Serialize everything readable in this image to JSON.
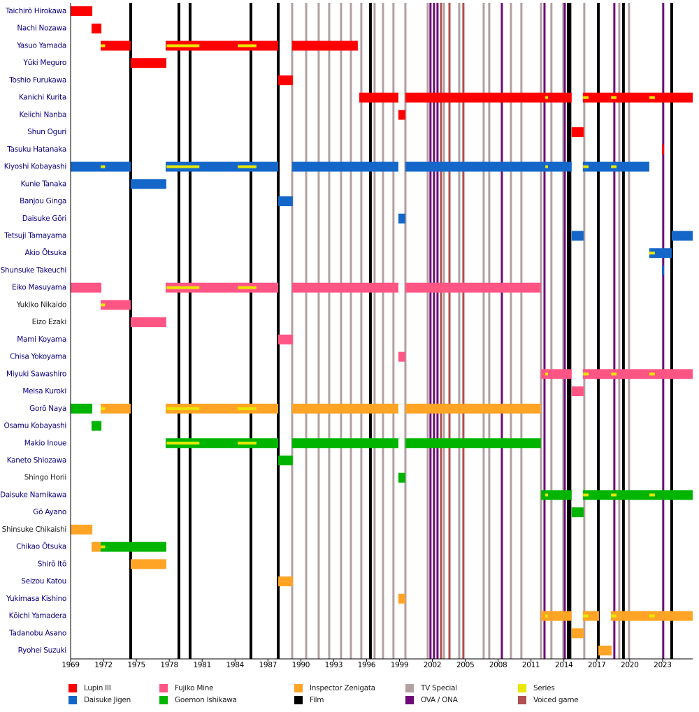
{
  "chart_data": {
    "type": "timeline",
    "xlim": [
      1969,
      2025.75
    ],
    "xticks": [
      1969,
      1972,
      1975,
      1978,
      1981,
      1984,
      1987,
      1990,
      1993,
      1996,
      1999,
      2002,
      2005,
      2008,
      2011,
      2014,
      2017,
      2020,
      2023
    ],
    "roles": [
      {
        "name": "Lupin III",
        "color": "#ff0000"
      },
      {
        "name": "Daisuke Jigen",
        "color": "#1467c9"
      },
      {
        "name": "Fujiko Mine",
        "color": "#ff5585"
      },
      {
        "name": "Goemon Ishikawa",
        "color": "#00b400"
      },
      {
        "name": "Inspector Zenigata",
        "color": "#ffa425"
      }
    ],
    "markers": [
      {
        "name": "Film",
        "color": "#000000",
        "width": 4,
        "years": [
          1974.48,
          1978.88,
          1979.9,
          1985.45,
          1987.94,
          1996.35,
          2014.4,
          2014.55,
          2017.14,
          2019.43,
          2023.83
        ]
      },
      {
        "name": "TV Special",
        "color": "#b3a0a0",
        "width": 3,
        "years": [
          1989.21,
          1990.49,
          1991.63,
          1992.59,
          1993.67,
          1994.57,
          1995.52,
          1996.73,
          1997.5,
          1998.45,
          1999.54,
          2001.58,
          2003.05,
          2004.45,
          2006.68,
          2007.19,
          2009.17,
          2010.12,
          2011.91,
          2012.86,
          2013.95,
          2015.86,
          2019.05,
          2019.94
        ]
      },
      {
        "name": "OVA / ONA",
        "color": "#6e0a78",
        "width": 3,
        "years": [
          2001.83,
          2002.15,
          2002.47,
          2008.34,
          2012.23,
          2014.08,
          2018.6,
          2023.06
        ]
      },
      {
        "name": "Series",
        "color": "#e8e800",
        "periods": [
          [
            1971.75,
            1972.15
          ],
          [
            1977.75,
            1980.75
          ],
          [
            1984.25,
            1985.95
          ],
          [
            2012.3,
            2012.55
          ],
          [
            2015.75,
            2016.25
          ],
          [
            2018.3,
            2018.8
          ],
          [
            2021.8,
            2022.3
          ]
        ]
      },
      {
        "name": "Voiced game",
        "color": "#b05050",
        "width": 3,
        "years": [
          2002.79,
          2003.56,
          2004.83
        ]
      }
    ],
    "rows": [
      {
        "name": "Taichirō Hirokawa",
        "name_color": "#0b0080",
        "bars": [
          {
            "role": 0,
            "start": 1969,
            "end": 1970.98
          }
        ]
      },
      {
        "name": "Nachi Nozawa",
        "name_color": "#0b0080",
        "bars": [
          {
            "role": 0,
            "start": 1970.91,
            "end": 1971.81
          }
        ]
      },
      {
        "name": "Yasuo Yamada",
        "name_color": "#0b0080",
        "bars": [
          {
            "role": 0,
            "start": 1971.74,
            "end": 1974.48
          },
          {
            "role": 0,
            "start": 1977.67,
            "end": 1987.94
          },
          {
            "role": 0,
            "start": 1989.21,
            "end": 1995.2
          }
        ]
      },
      {
        "name": "Yūki Meguro",
        "name_color": "#0b0080",
        "bars": [
          {
            "role": 0,
            "start": 1974.48,
            "end": 1977.73
          }
        ]
      },
      {
        "name": "Toshio Furukawa",
        "name_color": "#0b0080",
        "bars": [
          {
            "role": 0,
            "start": 1987.94,
            "end": 1989.27
          }
        ]
      },
      {
        "name": "Kanichi Kurita",
        "name_color": "#0b0080",
        "bars": [
          {
            "role": 0,
            "start": 1995.33,
            "end": 1998.9
          },
          {
            "role": 0,
            "start": 1999.54,
            "end": 2014.71
          },
          {
            "role": 0,
            "start": 2015.73,
            "end": 2025.75
          }
        ]
      },
      {
        "name": "Keiichi Nanba",
        "name_color": "#0b0080",
        "bars": [
          {
            "role": 0,
            "start": 1998.9,
            "end": 1999.54
          }
        ]
      },
      {
        "name": "Shun Oguri",
        "name_color": "#0b0080",
        "bars": [
          {
            "role": 0,
            "start": 2014.71,
            "end": 2015.8
          }
        ]
      },
      {
        "name": "Tasuku Hatanaka",
        "name_color": "#0b0080",
        "bars": [
          {
            "role": 0,
            "start": 2022.94,
            "end": 2023.13
          }
        ]
      },
      {
        "name": "Kiyoshi Kobayashi",
        "name_color": "#0b0080",
        "bars": [
          {
            "role": 1,
            "start": 1969,
            "end": 1974.48
          },
          {
            "role": 1,
            "start": 1977.67,
            "end": 1987.94
          },
          {
            "role": 1,
            "start": 1989.21,
            "end": 1998.9
          },
          {
            "role": 1,
            "start": 1999.54,
            "end": 2014.71
          },
          {
            "role": 1,
            "start": 2015.73,
            "end": 2021.79
          }
        ]
      },
      {
        "name": "Kunie Tanaka",
        "name_color": "#0b0080",
        "bars": [
          {
            "role": 1,
            "start": 1974.48,
            "end": 1977.73
          }
        ]
      },
      {
        "name": "Banjou Ginga",
        "name_color": "#0b0080",
        "bars": [
          {
            "role": 1,
            "start": 1987.94,
            "end": 1989.27
          }
        ]
      },
      {
        "name": "Daisuke Gōri",
        "name_color": "#0b0080",
        "bars": [
          {
            "role": 1,
            "start": 1998.9,
            "end": 1999.54
          }
        ]
      },
      {
        "name": "Tetsuji Tamayama",
        "name_color": "#0b0080",
        "bars": [
          {
            "role": 1,
            "start": 2014.71,
            "end": 2015.8
          },
          {
            "role": 1,
            "start": 2023.83,
            "end": 2025.75
          }
        ]
      },
      {
        "name": "Akio Ōtsuka",
        "name_color": "#0b0080",
        "bars": [
          {
            "role": 1,
            "start": 2021.79,
            "end": 2023.83
          }
        ]
      },
      {
        "name": "Shunsuke Takeuchi",
        "name_color": "#0b0080",
        "bars": [
          {
            "role": 1,
            "start": 2022.94,
            "end": 2023.13
          }
        ]
      },
      {
        "name": "Eiko Masuyama",
        "name_color": "#0b0080",
        "bars": [
          {
            "role": 2,
            "start": 1969,
            "end": 1971.81
          },
          {
            "role": 2,
            "start": 1977.67,
            "end": 1987.94
          },
          {
            "role": 2,
            "start": 1989.21,
            "end": 1998.9
          },
          {
            "role": 2,
            "start": 1999.54,
            "end": 2011.91
          }
        ]
      },
      {
        "name": "Yukiko Nikaido",
        "name_color": "#202122",
        "bars": [
          {
            "role": 2,
            "start": 1971.74,
            "end": 1974.48
          }
        ]
      },
      {
        "name": "Eizo Ezaki",
        "name_color": "#202122",
        "bars": [
          {
            "role": 2,
            "start": 1974.48,
            "end": 1977.73
          }
        ]
      },
      {
        "name": "Mami Koyama",
        "name_color": "#0b0080",
        "bars": [
          {
            "role": 2,
            "start": 1987.94,
            "end": 1989.27
          }
        ]
      },
      {
        "name": "Chisa Yokoyama",
        "name_color": "#0b0080",
        "bars": [
          {
            "role": 2,
            "start": 1998.9,
            "end": 1999.54
          }
        ]
      },
      {
        "name": "Miyuki Sawashiro",
        "name_color": "#0b0080",
        "bars": [
          {
            "role": 2,
            "start": 2011.91,
            "end": 2014.71
          },
          {
            "role": 2,
            "start": 2015.73,
            "end": 2025.75
          }
        ]
      },
      {
        "name": "Meisa Kuroki",
        "name_color": "#0b0080",
        "bars": [
          {
            "role": 2,
            "start": 2014.71,
            "end": 2015.8
          }
        ]
      },
      {
        "name": "Gorō Naya",
        "name_color": "#0b0080",
        "bars": [
          {
            "role": 3,
            "start": 1969,
            "end": 1970.98
          },
          {
            "role": 4,
            "start": 1971.74,
            "end": 1974.48
          },
          {
            "role": 4,
            "start": 1977.67,
            "end": 1987.94
          },
          {
            "role": 4,
            "start": 1989.21,
            "end": 1998.9
          },
          {
            "role": 4,
            "start": 1999.54,
            "end": 2011.91
          }
        ]
      },
      {
        "name": "Osamu Kobayashi",
        "name_color": "#0b0080",
        "bars": [
          {
            "role": 3,
            "start": 1970.91,
            "end": 1971.81
          }
        ]
      },
      {
        "name": "Makio Inoue",
        "name_color": "#0b0080",
        "bars": [
          {
            "role": 3,
            "start": 1977.67,
            "end": 1987.94
          },
          {
            "role": 3,
            "start": 1989.21,
            "end": 1998.9
          },
          {
            "role": 3,
            "start": 1999.54,
            "end": 2011.91
          }
        ]
      },
      {
        "name": "Kaneto Shiozawa",
        "name_color": "#0b0080",
        "bars": [
          {
            "role": 3,
            "start": 1987.94,
            "end": 1989.27
          }
        ]
      },
      {
        "name": "Shingo Horii",
        "name_color": "#202122",
        "bars": [
          {
            "role": 3,
            "start": 1998.9,
            "end": 1999.54
          }
        ]
      },
      {
        "name": "Daisuke Namikawa",
        "name_color": "#0b0080",
        "bars": [
          {
            "role": 3,
            "start": 2011.91,
            "end": 2014.71
          },
          {
            "role": 3,
            "start": 2015.73,
            "end": 2025.75
          }
        ]
      },
      {
        "name": "Gō Ayano",
        "name_color": "#0b0080",
        "bars": [
          {
            "role": 3,
            "start": 2014.71,
            "end": 2015.8
          }
        ]
      },
      {
        "name": "Shinsuke Chikaishi",
        "name_color": "#202122",
        "bars": [
          {
            "role": 4,
            "start": 1969,
            "end": 1970.98
          }
        ]
      },
      {
        "name": "Chikao Ōtsuka",
        "name_color": "#0b0080",
        "bars": [
          {
            "role": 4,
            "start": 1970.91,
            "end": 1971.81
          },
          {
            "role": 3,
            "start": 1971.74,
            "end": 1977.73
          }
        ]
      },
      {
        "name": "Shirō Itō",
        "name_color": "#0b0080",
        "bars": [
          {
            "role": 4,
            "start": 1974.48,
            "end": 1977.73
          }
        ]
      },
      {
        "name": "Seizou Katou",
        "name_color": "#0b0080",
        "bars": [
          {
            "role": 4,
            "start": 1987.94,
            "end": 1989.27
          }
        ]
      },
      {
        "name": "Yukimasa Kishino",
        "name_color": "#0b0080",
        "bars": [
          {
            "role": 4,
            "start": 1998.9,
            "end": 1999.54
          }
        ]
      },
      {
        "name": "Kōichi Yamadera",
        "name_color": "#0b0080",
        "bars": [
          {
            "role": 4,
            "start": 2011.91,
            "end": 2014.71
          },
          {
            "role": 4,
            "start": 2015.73,
            "end": 2017.2
          },
          {
            "role": 4,
            "start": 2018.28,
            "end": 2025.75
          }
        ]
      },
      {
        "name": "Tadanobu Asano",
        "name_color": "#0b0080",
        "bars": [
          {
            "role": 4,
            "start": 2014.71,
            "end": 2015.8
          }
        ]
      },
      {
        "name": "Ryohei Suzuki",
        "name_color": "#0b0080",
        "bars": [
          {
            "role": 4,
            "start": 2017.14,
            "end": 2018.35
          }
        ]
      }
    ]
  }
}
